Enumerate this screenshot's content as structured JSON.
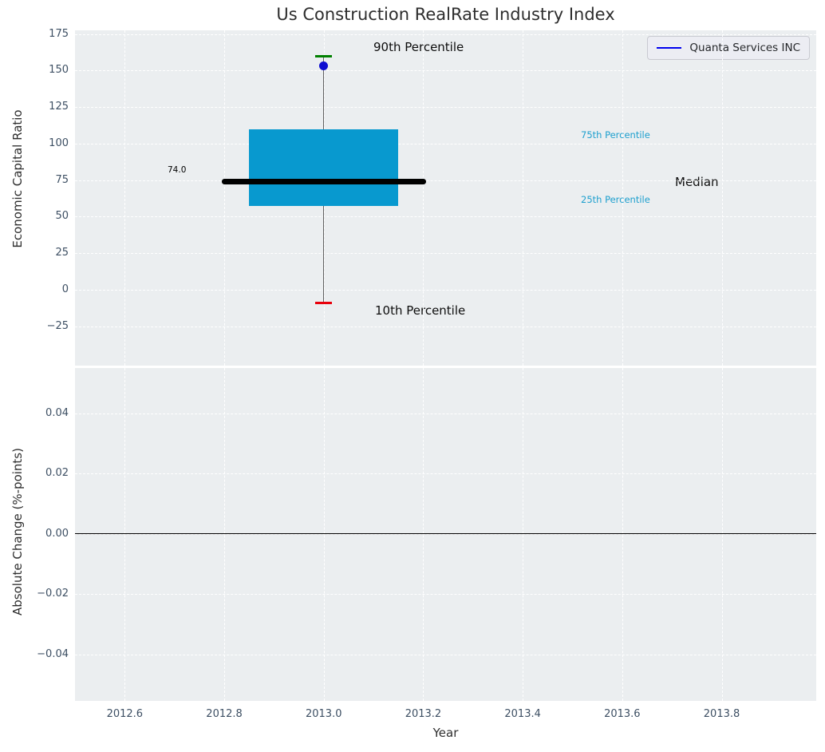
{
  "title": "Us Construction RealRate Industry Index",
  "legend": {
    "label": "Quanta Services INC"
  },
  "axes": {
    "top_ylabel": "Economic Capital Ratio",
    "bottom_ylabel": "Absolute Change (%-points)",
    "xlabel": "Year"
  },
  "annotations": {
    "p90": "90th Percentile",
    "p10": "10th Percentile",
    "median": "Median",
    "p75": "75th Percentile",
    "p25": "25th Percentile",
    "median_value": "74.0"
  },
  "colors": {
    "plot_bg": "#ebeef0",
    "grid": "#ffffff",
    "box_fill": "#0899cf",
    "median_line": "#000000",
    "whisker": "#606060",
    "cap_high": "#008000",
    "cap_low": "#e8000b",
    "point": "#0e0ed0",
    "legend_line": "#0000ee",
    "tick_text": "#3d4f63",
    "cyan_text": "#1d9fce",
    "zero_line": "#000000"
  },
  "chart_data": {
    "type": "boxplot",
    "title": "Us Construction RealRate Industry Index",
    "xlabel": "Year",
    "xlim": [
      2012.5,
      2013.99
    ],
    "xticks": [
      {
        "v": 2012.6,
        "label": "2012.6"
      },
      {
        "v": 2012.8,
        "label": "2012.8"
      },
      {
        "v": 2013.0,
        "label": "2013.0"
      },
      {
        "v": 2013.2,
        "label": "2013.2"
      },
      {
        "v": 2013.4,
        "label": "2013.4"
      },
      {
        "v": 2013.6,
        "label": "2013.6"
      },
      {
        "v": 2013.8,
        "label": "2013.8"
      }
    ],
    "panels": [
      {
        "name": "industry-index",
        "ylabel": "Economic Capital Ratio",
        "ylim": [
          -52,
          177.5
        ],
        "grid": true,
        "yticks": [
          {
            "v": 175,
            "label": "175"
          },
          {
            "v": 150,
            "label": "150"
          },
          {
            "v": 125,
            "label": "125"
          },
          {
            "v": 100,
            "label": "100"
          },
          {
            "v": 75,
            "label": "75"
          },
          {
            "v": 50,
            "label": "50"
          },
          {
            "v": 25,
            "label": "25"
          },
          {
            "v": 0,
            "label": "0"
          },
          {
            "v": -25,
            "label": "−25"
          }
        ],
        "box": {
          "x": 2013.0,
          "p10": -9,
          "p25": 57.5,
          "median": 74.0,
          "p75": 110,
          "p90": 160,
          "box_halfwidth": 0.15,
          "median_halfwidth": 0.205
        },
        "series": [
          {
            "name": "Quanta Services INC",
            "type": "scatter",
            "x": [
              2013.0
            ],
            "y": [
              153
            ]
          }
        ]
      },
      {
        "name": "absolute-change",
        "ylabel": "Absolute Change (%-points)",
        "ylim": [
          -0.0555,
          0.055
        ],
        "grid": true,
        "yticks": [
          {
            "v": 0.04,
            "label": "0.04"
          },
          {
            "v": 0.02,
            "label": "0.02"
          },
          {
            "v": 0.0,
            "label": "0.00"
          },
          {
            "v": -0.02,
            "label": "−0.02"
          },
          {
            "v": -0.04,
            "label": "−0.04"
          }
        ],
        "zero_line": 0,
        "series": []
      }
    ]
  }
}
